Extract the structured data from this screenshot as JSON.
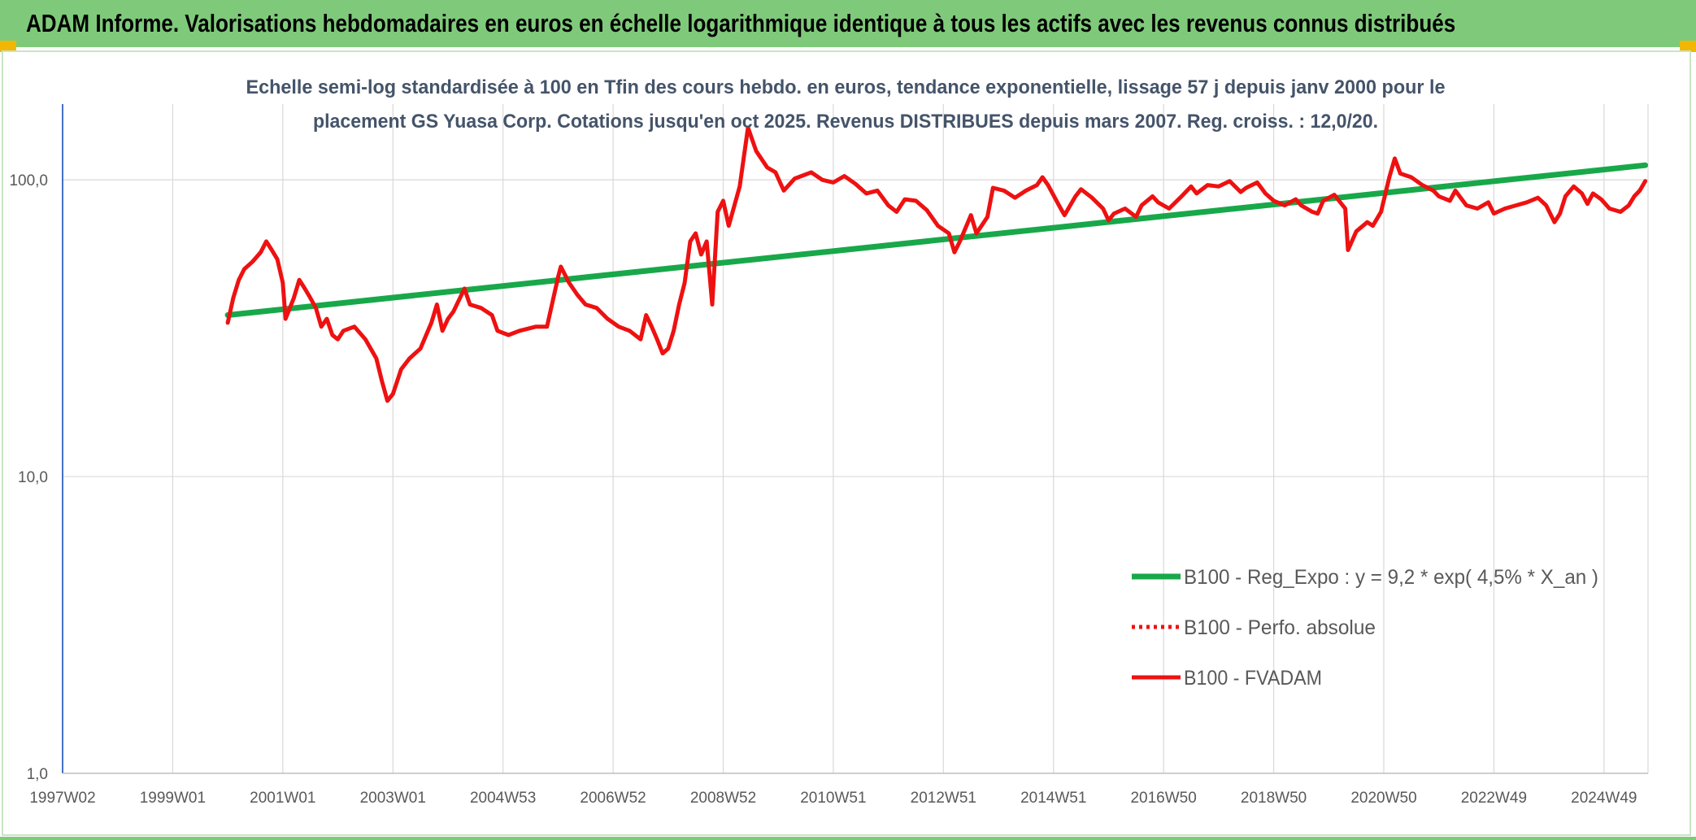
{
  "page": {
    "banner_title": "ADAM Informe. Valorisations hebdomadaires en euros en échelle logarithmique identique à tous les actifs avec les revenus connus distribués"
  },
  "colors": {
    "banner_bg": "#7fca7a",
    "accent_corner": "#f2b705",
    "regression_line": "#18a84a",
    "fvadam_line": "#ee1111",
    "grid": "#d9d9d9",
    "text": "#404040"
  },
  "chart_data": {
    "type": "line",
    "title_lines": [
      "Echelle semi-log standardisée à 100 en Tfin des cours hebdo. en euros, tendance exponentielle, lissage 57 j depuis janv 2000 pour le",
      "placement GS Yuasa Corp. Cotations jusqu'en oct 2025. Revenus DISTRIBUES depuis mars 2007. Reg. croiss. : 12,0/20."
    ],
    "y_scale": "log",
    "ylim": [
      1,
      180
    ],
    "yticks": [
      {
        "value": 1,
        "label": "1,0"
      },
      {
        "value": 10,
        "label": "10,0"
      },
      {
        "value": 100,
        "label": "100,0"
      }
    ],
    "xlim": [
      1997.0,
      2025.8
    ],
    "xticks": [
      {
        "x": 1997.0,
        "label": "1997W02"
      },
      {
        "x": 1999.0,
        "label": "1999W01"
      },
      {
        "x": 2001.0,
        "label": "2001W01"
      },
      {
        "x": 2003.0,
        "label": "2003W01"
      },
      {
        "x": 2005.0,
        "label": "2004W53"
      },
      {
        "x": 2007.0,
        "label": "2006W52"
      },
      {
        "x": 2009.0,
        "label": "2008W52"
      },
      {
        "x": 2011.0,
        "label": "2010W51"
      },
      {
        "x": 2013.0,
        "label": "2012W51"
      },
      {
        "x": 2015.0,
        "label": "2014W51"
      },
      {
        "x": 2017.0,
        "label": "2016W50"
      },
      {
        "x": 2019.0,
        "label": "2018W50"
      },
      {
        "x": 2021.0,
        "label": "2020W50"
      },
      {
        "x": 2023.0,
        "label": "2022W49"
      },
      {
        "x": 2025.0,
        "label": "2024W49"
      }
    ],
    "grid": true,
    "legend_position": "lower-right",
    "legend": [
      {
        "label": "B100 - Reg_Expo : y = 9,2 * exp( 4,5% *  X_an )",
        "color": "#18a84a",
        "style": "solid-thick"
      },
      {
        "label": "B100 - Perfo. absolue",
        "color": "#ee1111",
        "style": "dotted"
      },
      {
        "label": "B100 - FVADAM",
        "color": "#ee1111",
        "style": "solid"
      }
    ],
    "series": [
      {
        "name": "B100 - Reg_Expo : y = 9,2 * exp( 4,5% *  X_an )",
        "color": "#18a84a",
        "points": [
          [
            2000.0,
            35
          ],
          [
            2025.75,
            112
          ]
        ]
      },
      {
        "name": "B100 - Perfo. absolue",
        "color": "#ee1111",
        "points": []
      },
      {
        "name": "B100 - FVADAM",
        "color": "#ee1111",
        "points": [
          [
            2000.0,
            33
          ],
          [
            2000.1,
            40
          ],
          [
            2000.2,
            46
          ],
          [
            2000.3,
            50
          ],
          [
            2000.45,
            53
          ],
          [
            2000.6,
            57
          ],
          [
            2000.7,
            62
          ],
          [
            2000.8,
            58
          ],
          [
            2000.9,
            54
          ],
          [
            2001.0,
            45
          ],
          [
            2001.05,
            34
          ],
          [
            2001.2,
            40
          ],
          [
            2001.3,
            46
          ],
          [
            2001.4,
            43
          ],
          [
            2001.5,
            40
          ],
          [
            2001.6,
            37
          ],
          [
            2001.7,
            32
          ],
          [
            2001.8,
            34
          ],
          [
            2001.9,
            30
          ],
          [
            2002.0,
            29
          ],
          [
            2002.1,
            31
          ],
          [
            2002.3,
            32
          ],
          [
            2002.5,
            29
          ],
          [
            2002.7,
            25
          ],
          [
            2002.8,
            21
          ],
          [
            2002.9,
            18
          ],
          [
            2003.0,
            19
          ],
          [
            2003.15,
            23
          ],
          [
            2003.3,
            25
          ],
          [
            2003.5,
            27
          ],
          [
            2003.7,
            33
          ],
          [
            2003.8,
            38
          ],
          [
            2003.9,
            31
          ],
          [
            2004.0,
            34
          ],
          [
            2004.1,
            36
          ],
          [
            2004.3,
            43
          ],
          [
            2004.4,
            38
          ],
          [
            2004.6,
            37
          ],
          [
            2004.8,
            35
          ],
          [
            2004.9,
            31
          ],
          [
            2005.1,
            30
          ],
          [
            2005.3,
            31
          ],
          [
            2005.6,
            32
          ],
          [
            2005.8,
            32
          ],
          [
            2006.0,
            47
          ],
          [
            2006.05,
            51
          ],
          [
            2006.2,
            45
          ],
          [
            2006.35,
            41
          ],
          [
            2006.5,
            38
          ],
          [
            2006.7,
            37
          ],
          [
            2006.9,
            34
          ],
          [
            2007.1,
            32
          ],
          [
            2007.3,
            31
          ],
          [
            2007.5,
            29
          ],
          [
            2007.6,
            35
          ],
          [
            2007.7,
            32
          ],
          [
            2007.8,
            29
          ],
          [
            2007.9,
            26
          ],
          [
            2008.0,
            27
          ],
          [
            2008.1,
            31
          ],
          [
            2008.2,
            38
          ],
          [
            2008.3,
            45
          ],
          [
            2008.4,
            62
          ],
          [
            2008.5,
            66
          ],
          [
            2008.6,
            56
          ],
          [
            2008.7,
            62
          ],
          [
            2008.8,
            38
          ],
          [
            2008.9,
            78
          ],
          [
            2009.0,
            85
          ],
          [
            2009.1,
            70
          ],
          [
            2009.3,
            95
          ],
          [
            2009.45,
            150
          ],
          [
            2009.6,
            125
          ],
          [
            2009.8,
            110
          ],
          [
            2009.95,
            106
          ],
          [
            2010.1,
            92
          ],
          [
            2010.3,
            101
          ],
          [
            2010.6,
            106
          ],
          [
            2010.8,
            100
          ],
          [
            2011.0,
            98
          ],
          [
            2011.2,
            103
          ],
          [
            2011.4,
            97
          ],
          [
            2011.6,
            90
          ],
          [
            2011.8,
            92
          ],
          [
            2012.0,
            82
          ],
          [
            2012.15,
            78
          ],
          [
            2012.3,
            86
          ],
          [
            2012.5,
            85
          ],
          [
            2012.7,
            79
          ],
          [
            2012.9,
            70
          ],
          [
            2013.1,
            66
          ],
          [
            2013.2,
            57
          ],
          [
            2013.3,
            62
          ],
          [
            2013.5,
            76
          ],
          [
            2013.6,
            66
          ],
          [
            2013.8,
            75
          ],
          [
            2013.9,
            94
          ],
          [
            2014.1,
            92
          ],
          [
            2014.3,
            87
          ],
          [
            2014.5,
            92
          ],
          [
            2014.7,
            96
          ],
          [
            2014.8,
            102
          ],
          [
            2014.9,
            96
          ],
          [
            2015.1,
            82
          ],
          [
            2015.2,
            76
          ],
          [
            2015.4,
            88
          ],
          [
            2015.5,
            93
          ],
          [
            2015.7,
            87
          ],
          [
            2015.9,
            80
          ],
          [
            2016.0,
            73
          ],
          [
            2016.1,
            77
          ],
          [
            2016.3,
            80
          ],
          [
            2016.5,
            75
          ],
          [
            2016.6,
            82
          ],
          [
            2016.8,
            88
          ],
          [
            2016.9,
            84
          ],
          [
            2017.1,
            80
          ],
          [
            2017.3,
            87
          ],
          [
            2017.5,
            95
          ],
          [
            2017.6,
            90
          ],
          [
            2017.8,
            96
          ],
          [
            2018.0,
            95
          ],
          [
            2018.2,
            99
          ],
          [
            2018.4,
            91
          ],
          [
            2018.5,
            94
          ],
          [
            2018.7,
            98
          ],
          [
            2018.85,
            90
          ],
          [
            2019.0,
            85
          ],
          [
            2019.2,
            82
          ],
          [
            2019.4,
            86
          ],
          [
            2019.5,
            82
          ],
          [
            2019.7,
            78
          ],
          [
            2019.8,
            77
          ],
          [
            2019.9,
            85
          ],
          [
            2020.1,
            89
          ],
          [
            2020.3,
            80
          ],
          [
            2020.35,
            58
          ],
          [
            2020.5,
            67
          ],
          [
            2020.7,
            72
          ],
          [
            2020.8,
            70
          ],
          [
            2020.95,
            78
          ],
          [
            2021.1,
            102
          ],
          [
            2021.2,
            118
          ],
          [
            2021.3,
            105
          ],
          [
            2021.5,
            102
          ],
          [
            2021.7,
            96
          ],
          [
            2021.9,
            92
          ],
          [
            2022.0,
            88
          ],
          [
            2022.2,
            85
          ],
          [
            2022.3,
            92
          ],
          [
            2022.5,
            82
          ],
          [
            2022.7,
            80
          ],
          [
            2022.9,
            84
          ],
          [
            2023.0,
            77
          ],
          [
            2023.2,
            80
          ],
          [
            2023.4,
            82
          ],
          [
            2023.6,
            84
          ],
          [
            2023.8,
            87
          ],
          [
            2023.95,
            82
          ],
          [
            2024.1,
            72
          ],
          [
            2024.2,
            77
          ],
          [
            2024.3,
            88
          ],
          [
            2024.45,
            95
          ],
          [
            2024.6,
            90
          ],
          [
            2024.7,
            83
          ],
          [
            2024.8,
            90
          ],
          [
            2024.95,
            86
          ],
          [
            2025.1,
            80
          ],
          [
            2025.3,
            78
          ],
          [
            2025.45,
            82
          ],
          [
            2025.55,
            88
          ],
          [
            2025.65,
            92
          ],
          [
            2025.75,
            99
          ]
        ]
      }
    ]
  }
}
